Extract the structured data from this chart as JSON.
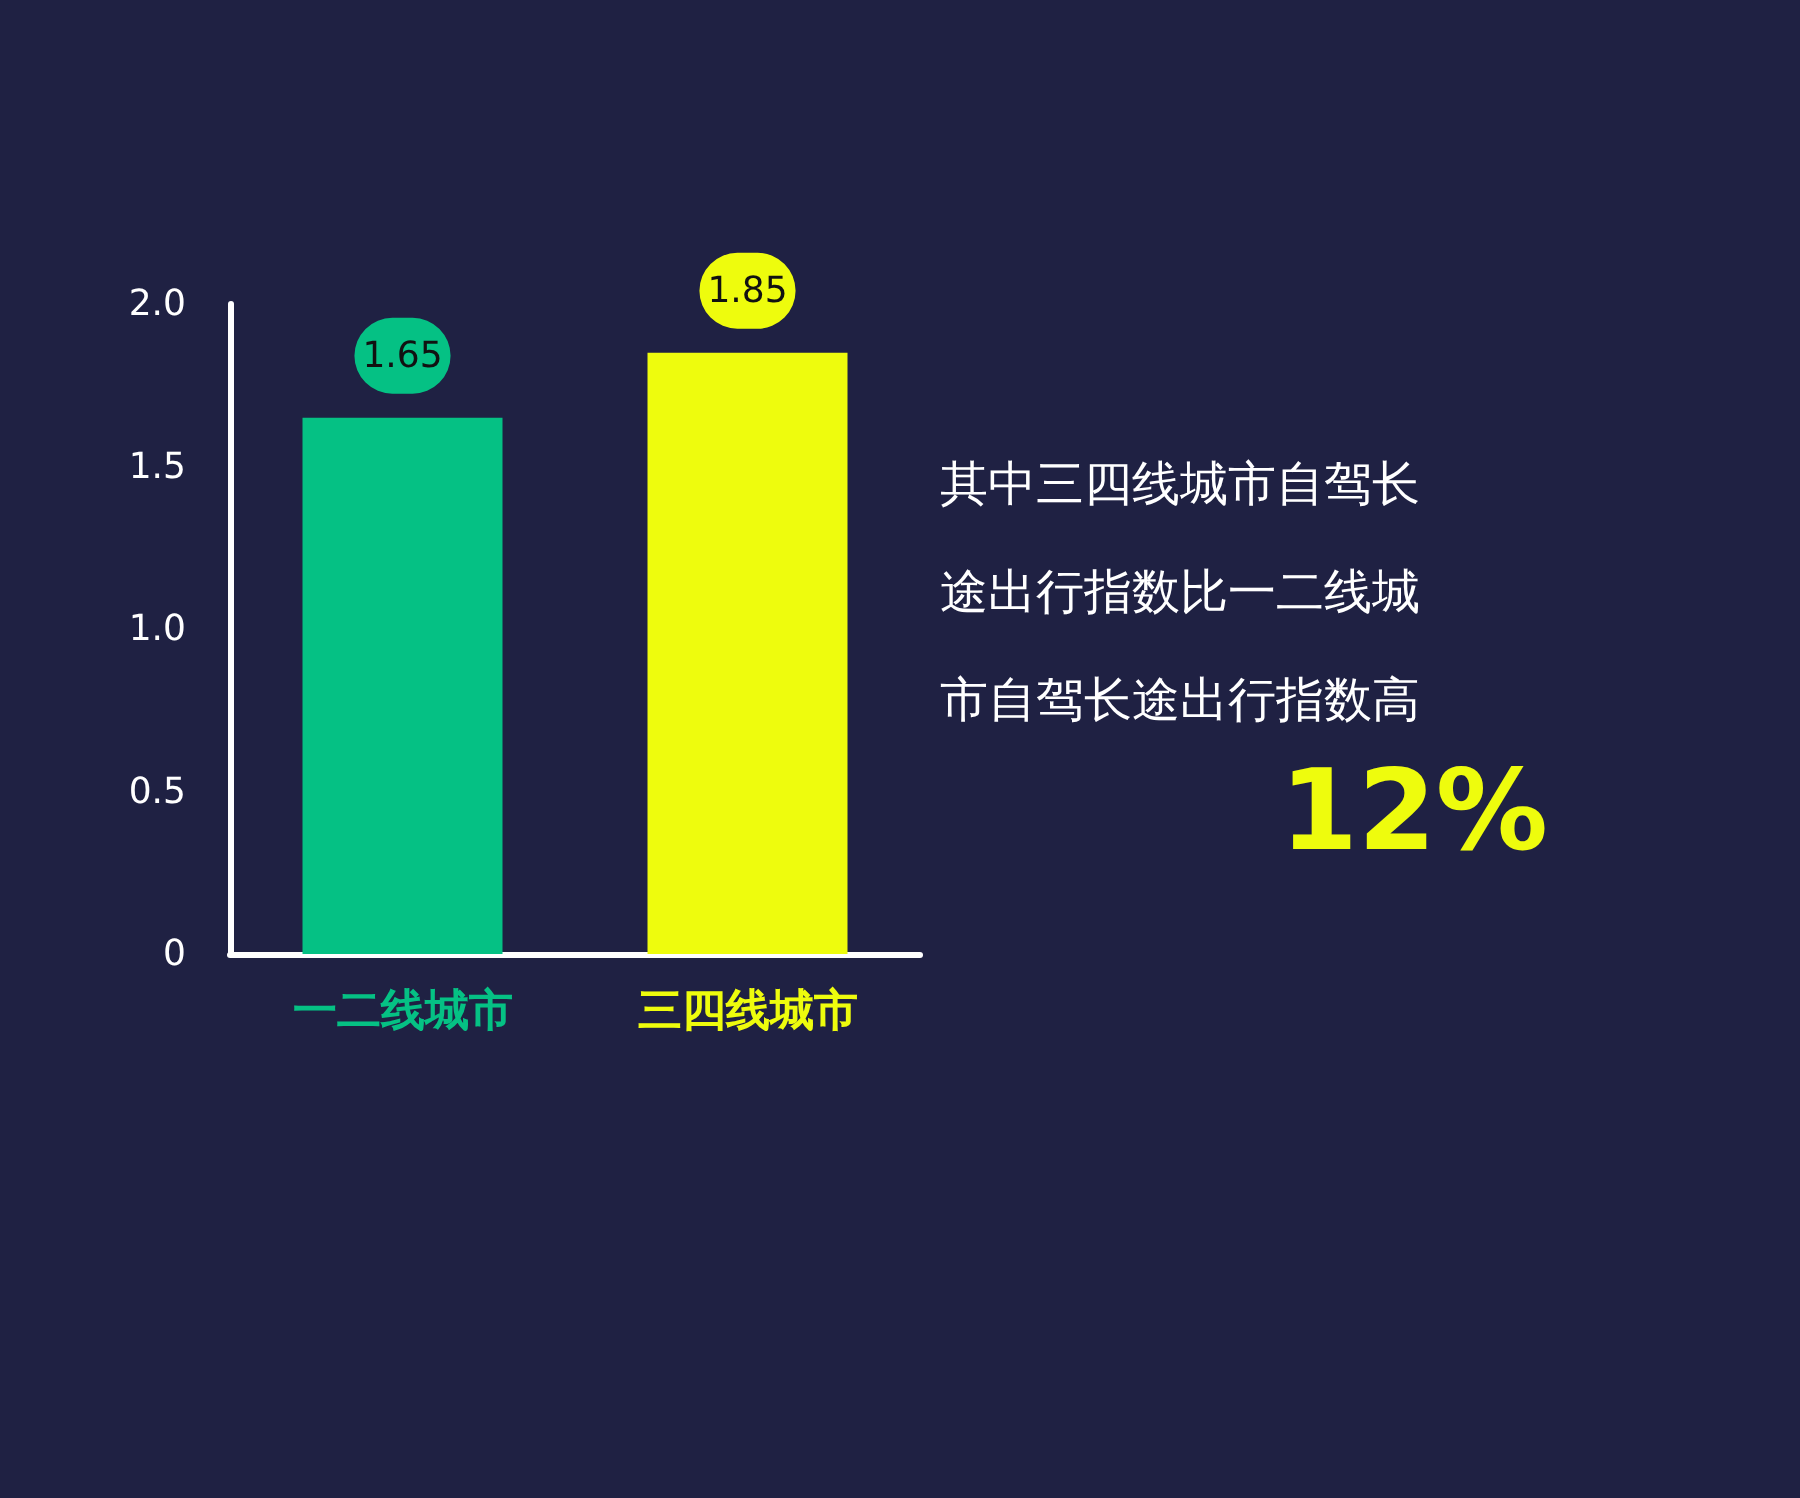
{
  "chart_data": {
    "type": "bar",
    "categories": [
      "一二线城市",
      "三四线城市"
    ],
    "values": [
      1.65,
      1.85
    ],
    "colors": [
      "#05c184",
      "#eefc0d"
    ],
    "ylim": [
      0,
      2
    ],
    "yticks": [
      0,
      0.5,
      {
        "value": 1,
        "label": "1.0"
      },
      1.5,
      {
        "value": 2,
        "label": "2.0"
      }
    ],
    "grid": false,
    "data_labels": true,
    "annotations": [
      "其中三四线城市自驾长途出行指数比一二线城市自驾长途出行指数高",
      "12%"
    ]
  }
}
